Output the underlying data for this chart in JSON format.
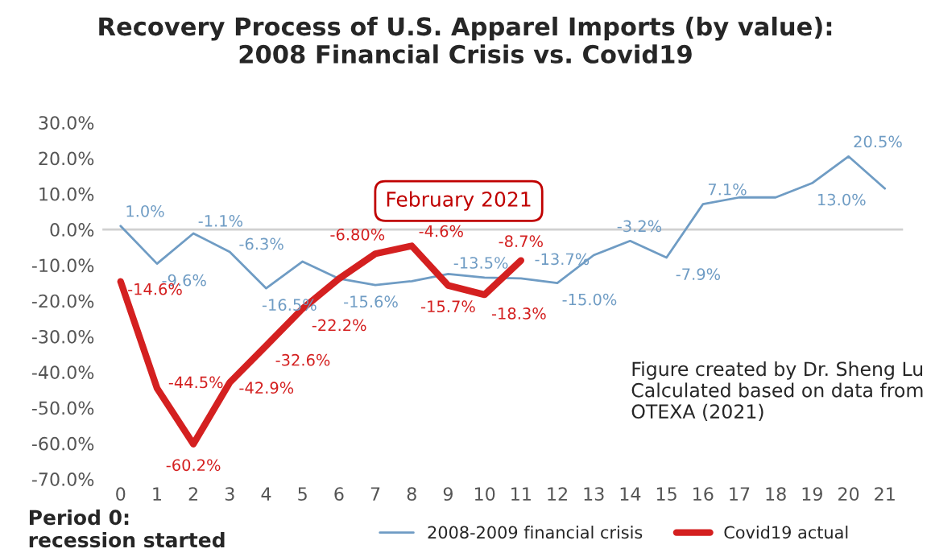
{
  "chart_data": {
    "type": "line",
    "title": "Recovery Process of U.S. Apparel Imports (by value):\n2008 Financial Crisis vs. Covid19",
    "categories": [
      "0",
      "1",
      "2",
      "3",
      "4",
      "5",
      "6",
      "7",
      "8",
      "9",
      "10",
      "11",
      "12",
      "13",
      "14",
      "15",
      "16",
      "17",
      "18",
      "19",
      "20",
      "21"
    ],
    "series": [
      {
        "name": "2008-2009 financial crisis",
        "color": "#6f9cc4",
        "values": [
          1.0,
          -9.6,
          -1.1,
          -6.3,
          -16.5,
          -9.0,
          -13.8,
          -15.6,
          -14.5,
          -12.5,
          -13.5,
          -13.7,
          -15.0,
          -7.2,
          -3.2,
          -7.9,
          7.1,
          9.0,
          9.0,
          13.0,
          20.5,
          11.5
        ],
        "value_labels": [
          "1.0%",
          "-9.6%",
          "-1.1%",
          "-6.3%",
          "-16.5%",
          null,
          null,
          "-15.6%",
          null,
          null,
          "-13.5%",
          "-13.7%",
          "-15.0%",
          null,
          "-3.2%",
          "-7.9%",
          "7.1%",
          null,
          null,
          "13.0%",
          "20.5%",
          null
        ]
      },
      {
        "name": "Covid19 actual",
        "color": "#d42020",
        "values": [
          -14.6,
          -44.5,
          -60.2,
          -42.9,
          -32.6,
          -22.2,
          -13.8,
          -6.8,
          -4.6,
          -15.7,
          -18.3,
          -8.7,
          null,
          null,
          null,
          null,
          null,
          null,
          null,
          null,
          null,
          null
        ],
        "value_labels": [
          "-14.6%",
          "-44.5%",
          "-60.2%",
          "-42.9%",
          "-32.6%",
          "-22.2%",
          null,
          "-6.80%",
          "-4.6%",
          "-15.7%",
          "-18.3%",
          "-8.7%",
          null,
          null,
          null,
          null,
          null,
          null,
          null,
          null,
          null,
          null
        ]
      }
    ],
    "ylim": [
      -70,
      30
    ],
    "yticks": [
      {
        "value": -70,
        "label": "-70.0%"
      },
      {
        "value": -60,
        "label": "-60.0%"
      },
      {
        "value": -50,
        "label": "-50.0%"
      },
      {
        "value": -40,
        "label": "-40.0%"
      },
      {
        "value": -30,
        "label": "-30.0%"
      },
      {
        "value": -20,
        "label": "-20.0%"
      },
      {
        "value": -10,
        "label": "-10.0%"
      },
      {
        "value": 0,
        "label": "0.0%"
      },
      {
        "value": 10,
        "label": "10.0%"
      },
      {
        "value": 20,
        "label": "20.0%"
      },
      {
        "value": 30,
        "label": "30.0%"
      }
    ],
    "ref_lines": [
      {
        "axis": "y",
        "value": 0,
        "color": "#d0d0d0"
      }
    ],
    "grid": false,
    "legend": "bottom",
    "marker": "none",
    "annotations": [
      "February 2021",
      "Figure created by Dr. Sheng Lu\nCalculated based on data from\nOTEXA (2021)",
      "Period 0:\nrecession started"
    ]
  }
}
